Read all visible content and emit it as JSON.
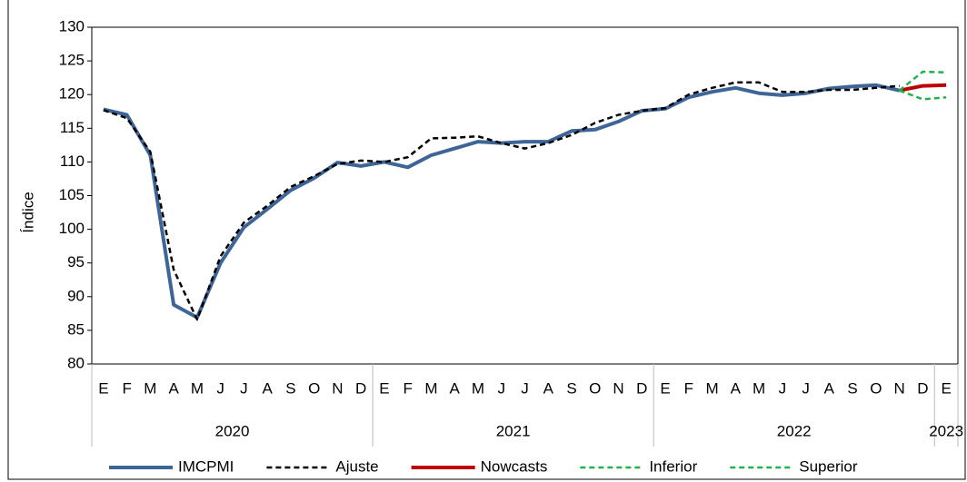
{
  "chart_data": {
    "type": "line",
    "y_label": "Índice",
    "categories": [
      "E",
      "F",
      "M",
      "A",
      "M",
      "J",
      "J",
      "A",
      "S",
      "O",
      "N",
      "D",
      "E",
      "F",
      "M",
      "A",
      "M",
      "J",
      "J",
      "A",
      "S",
      "O",
      "N",
      "D",
      "E",
      "F",
      "M",
      "A",
      "M",
      "J",
      "J",
      "A",
      "S",
      "O",
      "N",
      "D",
      "E"
    ],
    "years": [
      "2020",
      "2021",
      "2022",
      "2023"
    ],
    "ylim": [
      80,
      130
    ],
    "yticks": [
      80,
      85,
      90,
      95,
      100,
      105,
      110,
      115,
      120,
      125,
      130
    ],
    "grid": false,
    "series": [
      {
        "name": "IMCPMI",
        "color": "#3e6598",
        "dash": "solid",
        "values": [
          117.8,
          117.0,
          111.0,
          88.8,
          86.9,
          95.0,
          100.3,
          103.0,
          105.8,
          107.6,
          109.9,
          109.4,
          110.0,
          109.2,
          111.0,
          112.0,
          113.0,
          112.8,
          113.0,
          113.0,
          114.6,
          114.8,
          116.0,
          117.6,
          117.9,
          119.6,
          120.4,
          121.0,
          120.2,
          119.9,
          120.2,
          120.9,
          121.2,
          121.4,
          120.6,
          null,
          null
        ]
      },
      {
        "name": "Ajuste",
        "color": "#000000",
        "dash": "dashed",
        "values": [
          117.7,
          116.5,
          111.5,
          94.0,
          86.6,
          96.0,
          101.0,
          103.5,
          106.3,
          107.9,
          109.7,
          110.2,
          110.0,
          110.7,
          113.5,
          113.6,
          113.8,
          112.8,
          112.0,
          112.8,
          114.0,
          115.8,
          117.0,
          117.6,
          118.0,
          120.0,
          121.0,
          121.8,
          121.8,
          120.4,
          120.4,
          120.7,
          120.7,
          121.0,
          121.3,
          null,
          null
        ]
      },
      {
        "name": "Nowcasts",
        "color": "#c00000",
        "dash": "solid",
        "values": [
          null,
          null,
          null,
          null,
          null,
          null,
          null,
          null,
          null,
          null,
          null,
          null,
          null,
          null,
          null,
          null,
          null,
          null,
          null,
          null,
          null,
          null,
          null,
          null,
          null,
          null,
          null,
          null,
          null,
          null,
          null,
          null,
          null,
          null,
          120.6,
          121.3,
          121.4
        ]
      },
      {
        "name": "Inferior",
        "color": "#22b14c",
        "dash": "dashed",
        "values": [
          null,
          null,
          null,
          null,
          null,
          null,
          null,
          null,
          null,
          null,
          null,
          null,
          null,
          null,
          null,
          null,
          null,
          null,
          null,
          null,
          null,
          null,
          null,
          null,
          null,
          null,
          null,
          null,
          null,
          null,
          null,
          null,
          null,
          null,
          120.6,
          119.3,
          119.6
        ]
      },
      {
        "name": "Superior",
        "color": "#22b14c",
        "dash": "dashed",
        "values": [
          null,
          null,
          null,
          null,
          null,
          null,
          null,
          null,
          null,
          null,
          null,
          null,
          null,
          null,
          null,
          null,
          null,
          null,
          null,
          null,
          null,
          null,
          null,
          null,
          null,
          null,
          null,
          null,
          null,
          null,
          null,
          null,
          null,
          null,
          120.6,
          123.4,
          123.3
        ]
      }
    ]
  }
}
